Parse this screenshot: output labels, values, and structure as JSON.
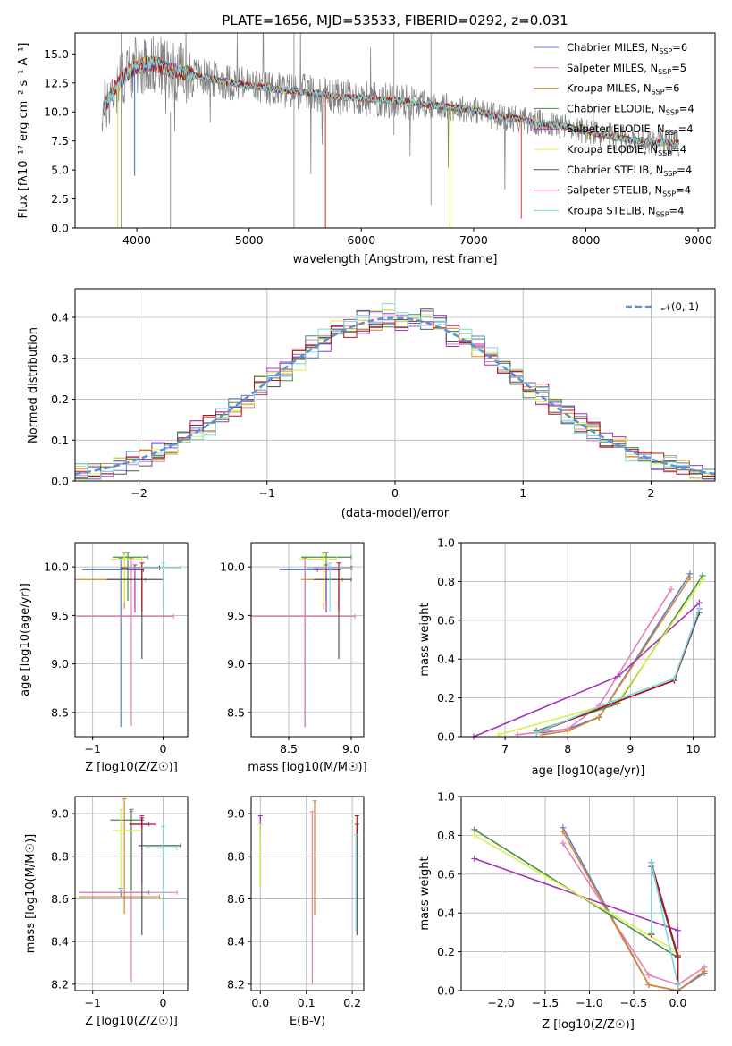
{
  "colors": {
    "Chabrier MILES": "#5a7fd6",
    "Salpeter MILES": "#e87fb8",
    "Kroupa MILES": "#d9862a",
    "Chabrier ELODIE": "#4b8c4b",
    "Salpeter ELODIE": "#a235b8",
    "Kroupa ELODIE": "#d8f04a",
    "Chabrier STELIB": "#555555",
    "Salpeter STELIB": "#b01020",
    "Kroupa STELIB": "#7fd8e0"
  },
  "chart_data": [
    {
      "id": "spectrum",
      "type": "line",
      "title": "PLATE=1656, MJD=53533, FIBERID=0292, z=0.031",
      "xlabel": "wavelength [Angstrom, rest frame]",
      "ylabel": "Flux [fλ10⁻¹⁷ erg cm⁻² s⁻¹ A⁻¹]",
      "xlim": [
        3450,
        9150
      ],
      "ylim": [
        0,
        16.8
      ],
      "xticks": [
        4000,
        5000,
        6000,
        7000,
        8000,
        9000
      ],
      "yticks": [
        0.0,
        2.5,
        5.0,
        7.5,
        10.0,
        12.5,
        15.0
      ],
      "legend_position": "top-right",
      "legend": [
        {
          "label": "Chabrier MILES, NSSP=6",
          "model": "Chabrier MILES"
        },
        {
          "label": "Salpeter MILES, NSSP=5",
          "model": "Salpeter MILES"
        },
        {
          "label": "Kroupa MILES, NSSP=6",
          "model": "Kroupa MILES"
        },
        {
          "label": "Chabrier ELODIE, NSSP=4",
          "model": "Chabrier ELODIE"
        },
        {
          "label": "Salpeter ELODIE, NSSP=4",
          "model": "Salpeter ELODIE"
        },
        {
          "label": "Kroupa ELODIE, NSSP=4",
          "model": "Kroupa ELODIE"
        },
        {
          "label": "Chabrier STELIB, NSSP=4",
          "model": "Chabrier STELIB"
        },
        {
          "label": "Salpeter STELIB, NSSP=4",
          "model": "Salpeter STELIB"
        },
        {
          "label": "Kroupa STELIB, NSSP=4",
          "model": "Kroupa STELIB"
        }
      ],
      "continuum": {
        "x": [
          3700,
          3800,
          3900,
          4000,
          4100,
          4200,
          4300,
          4400,
          4600,
          4800,
          5000,
          5200,
          5400,
          5600,
          5800,
          6000,
          6200,
          6400,
          6600,
          6800,
          7000,
          7200,
          7400,
          7600,
          7800,
          8000,
          8200,
          8400,
          8600,
          8800
        ],
        "y": [
          10.2,
          12.0,
          13.2,
          14.0,
          14.2,
          14.0,
          13.6,
          13.4,
          13.0,
          12.6,
          12.3,
          12.0,
          11.8,
          11.6,
          11.3,
          11.2,
          11.0,
          10.9,
          10.6,
          10.4,
          10.2,
          9.6,
          9.4,
          9.0,
          8.8,
          8.3,
          7.9,
          7.6,
          7.4,
          7.3
        ]
      }
    },
    {
      "id": "residuals",
      "type": "bar",
      "xlabel": "(data-model)/error",
      "ylabel": "Normed distribution",
      "xlim": [
        -2.5,
        2.5
      ],
      "ylim": [
        0,
        0.47
      ],
      "xticks": [
        -2,
        -1,
        0,
        1,
        2
      ],
      "yticks": [
        0.0,
        0.1,
        0.2,
        0.3,
        0.4
      ],
      "legend_position": "top-right",
      "legend": [
        {
          "label": "𝒩(0, 1)"
        }
      ],
      "bin_width": 0.1
    },
    {
      "id": "age_vs_Z",
      "type": "scatter",
      "xlabel": "Z [log10(Z/Z☉)]",
      "ylabel": "age  [log10(age/yr)]",
      "xlim": [
        -1.25,
        0.35
      ],
      "ylim": [
        8.25,
        10.25
      ],
      "xticks": [
        -1,
        0
      ],
      "xticklabels": [
        "−1",
        "0"
      ],
      "yticks": [
        8.5,
        9.0,
        9.5,
        10.0
      ],
      "points": [
        {
          "model": "Chabrier MILES",
          "x": -0.6,
          "y": 9.97,
          "xerr": [
            0.55,
            0.3
          ],
          "yerr": [
            1.62,
            0.12
          ]
        },
        {
          "model": "Salpeter MILES",
          "x": -0.45,
          "y": 9.49,
          "xerr": [
            0.78,
            0.6
          ],
          "yerr": [
            1.13,
            0.6
          ]
        },
        {
          "model": "Kroupa MILES",
          "x": -0.55,
          "y": 9.87,
          "xerr": [
            0.7,
            0.3
          ],
          "yerr": [
            0.3,
            0.28
          ]
        },
        {
          "model": "Chabrier ELODIE",
          "x": -0.5,
          "y": 10.1,
          "xerr": [
            0.22,
            0.28
          ],
          "yerr": [
            0.45,
            0.05
          ]
        },
        {
          "model": "Salpeter ELODIE",
          "x": -0.4,
          "y": 9.97,
          "xerr": [
            0.1,
            0.12
          ],
          "yerr": [
            0.44,
            0.05
          ]
        },
        {
          "model": "Kroupa ELODIE",
          "x": -0.55,
          "y": 10.08,
          "xerr": [
            0.2,
            0.25
          ],
          "yerr": [
            0.45,
            0.05
          ]
        },
        {
          "model": "Chabrier STELIB",
          "x": -0.3,
          "y": 9.87,
          "xerr": [
            0.5,
            0.3
          ],
          "yerr": [
            0.82,
            0.1
          ]
        },
        {
          "model": "Salpeter STELIB",
          "x": -0.3,
          "y": 9.99,
          "xerr": [
            0.3,
            0.25
          ],
          "yerr": [
            0.45,
            0.05
          ]
        },
        {
          "model": "Kroupa STELIB",
          "x": 0.0,
          "y": 9.99,
          "xerr": [
            0.5,
            0.25
          ],
          "yerr": [
            0.45,
            0.05
          ]
        }
      ]
    },
    {
      "id": "age_vs_mass",
      "type": "scatter",
      "xlabel": "mass [log10(M/M☉)]",
      "xlim": [
        8.2,
        9.1
      ],
      "ylim": [
        8.25,
        10.25
      ],
      "xticks": [
        8.5,
        9.0
      ],
      "yticks": [
        8.5,
        9.0,
        9.5,
        10.0
      ],
      "points": [
        {
          "model": "Chabrier MILES",
          "x": 8.63,
          "y": 9.97,
          "xerr": [
            0.2,
            0.1
          ],
          "yerr": [
            1.62,
            0.12
          ]
        },
        {
          "model": "Salpeter MILES",
          "x": 8.63,
          "y": 9.49,
          "xerr": [
            0.43,
            0.4
          ],
          "yerr": [
            1.13,
            0.6
          ]
        },
        {
          "model": "Kroupa MILES",
          "x": 8.78,
          "y": 9.87,
          "xerr": [
            0.18,
            0.15
          ],
          "yerr": [
            0.3,
            0.28
          ]
        },
        {
          "model": "Chabrier ELODIE",
          "x": 8.8,
          "y": 10.1,
          "xerr": [
            0.2,
            0.2
          ],
          "yerr": [
            0.45,
            0.05
          ]
        },
        {
          "model": "Salpeter ELODIE",
          "x": 8.8,
          "y": 9.97,
          "xerr": [
            0.1,
            0.1
          ],
          "yerr": [
            0.44,
            0.05
          ]
        },
        {
          "model": "Kroupa ELODIE",
          "x": 8.78,
          "y": 10.08,
          "xerr": [
            0.2,
            0.1
          ],
          "yerr": [
            0.45,
            0.05
          ]
        },
        {
          "model": "Chabrier STELIB",
          "x": 8.9,
          "y": 9.87,
          "xerr": [
            0.2,
            0.1
          ],
          "yerr": [
            0.82,
            0.1
          ]
        },
        {
          "model": "Salpeter STELIB",
          "x": 8.9,
          "y": 9.99,
          "xerr": [
            0.2,
            0.1
          ],
          "yerr": [
            0.45,
            0.05
          ]
        },
        {
          "model": "Kroupa STELIB",
          "x": 8.83,
          "y": 9.99,
          "xerr": [
            0.18,
            0.18
          ],
          "yerr": [
            0.45,
            0.05
          ]
        }
      ]
    },
    {
      "id": "massweight_vs_age",
      "type": "line",
      "xlabel": "age  [log10(age/yr)]",
      "ylabel": "mass weight",
      "xlim": [
        6.3,
        10.35
      ],
      "ylim": [
        0,
        1.0
      ],
      "xticks": [
        7,
        8,
        9,
        10
      ],
      "yticks": [
        0.0,
        0.2,
        0.4,
        0.6,
        0.8,
        1.0
      ],
      "series": [
        {
          "model": "Chabrier MILES",
          "x": [
            7.6,
            8.0,
            8.5,
            9.95
          ],
          "y": [
            0.02,
            0.04,
            0.1,
            0.84
          ]
        },
        {
          "model": "Salpeter MILES",
          "x": [
            7.2,
            8.0,
            8.5,
            9.65
          ],
          "y": [
            0.01,
            0.04,
            0.16,
            0.76
          ]
        },
        {
          "model": "Kroupa MILES",
          "x": [
            7.6,
            8.0,
            8.5,
            9.95
          ],
          "y": [
            0.01,
            0.03,
            0.1,
            0.82
          ]
        },
        {
          "model": "Chabrier ELODIE",
          "x": [
            7.5,
            8.8,
            10.15
          ],
          "y": [
            0.03,
            0.17,
            0.83
          ]
        },
        {
          "model": "Salpeter ELODIE",
          "x": [
            6.5,
            8.8,
            10.1
          ],
          "y": [
            0.0,
            0.31,
            0.69
          ]
        },
        {
          "model": "Kroupa ELODIE",
          "x": [
            6.9,
            8.8,
            10.15
          ],
          "y": [
            0.01,
            0.18,
            0.81
          ]
        },
        {
          "model": "Chabrier STELIB",
          "x": [
            7.5,
            8.7,
            9.7,
            10.1
          ],
          "y": [
            0.02,
            0.17,
            0.29,
            0.64
          ]
        },
        {
          "model": "Salpeter STELIB",
          "x": [
            7.5,
            8.7,
            9.7,
            10.1
          ],
          "y": [
            0.02,
            0.17,
            0.29,
            0.66
          ]
        },
        {
          "model": "Kroupa STELIB",
          "x": [
            7.5,
            8.7,
            9.7,
            10.1
          ],
          "y": [
            0.02,
            0.18,
            0.3,
            0.66
          ]
        }
      ]
    },
    {
      "id": "mass_vs_Z",
      "type": "scatter",
      "xlabel": "Z [log10(Z/Z☉)]",
      "ylabel": "mass [log10(M/M☉)]",
      "xlim": [
        -1.25,
        0.35
      ],
      "ylim": [
        8.17,
        9.08
      ],
      "xticks": [
        -1,
        0
      ],
      "xticklabels": [
        "−1",
        "0"
      ],
      "yticks": [
        8.2,
        8.4,
        8.6,
        8.8,
        9.0
      ],
      "points": [
        {
          "model": "Chabrier MILES",
          "x": -0.6,
          "y": 8.63,
          "xerr": [
            0.6,
            0.4
          ],
          "yerr": [
            0.02,
            0.02
          ]
        },
        {
          "model": "Salpeter MILES",
          "x": -0.45,
          "y": 8.63,
          "xerr": [
            0.75,
            0.65
          ],
          "yerr": [
            0.42,
            0.38
          ]
        },
        {
          "model": "Kroupa MILES",
          "x": -0.55,
          "y": 8.61,
          "xerr": [
            0.65,
            0.5
          ],
          "yerr": [
            0.08,
            0.46
          ]
        },
        {
          "model": "Chabrier ELODIE",
          "x": -0.45,
          "y": 8.97,
          "xerr": [
            0.3,
            0.15
          ],
          "yerr": [
            0.33,
            0.05
          ]
        },
        {
          "model": "Salpeter ELODIE",
          "x": -0.3,
          "y": 8.95,
          "xerr": [
            0.15,
            0.1
          ],
          "yerr": [
            0.28,
            0.04
          ]
        },
        {
          "model": "Kroupa ELODIE",
          "x": -0.6,
          "y": 8.92,
          "xerr": [
            0.12,
            0.3
          ],
          "yerr": [
            0.28,
            0.1
          ]
        },
        {
          "model": "Chabrier STELIB",
          "x": -0.3,
          "y": 8.85,
          "xerr": [
            0.05,
            0.55
          ],
          "yerr": [
            0.42,
            0.12
          ]
        },
        {
          "model": "Salpeter STELIB",
          "x": -0.3,
          "y": 8.95,
          "xerr": [
            0.18,
            0.2
          ],
          "yerr": [
            0.02,
            0.03
          ]
        },
        {
          "model": "Kroupa STELIB",
          "x": 0.0,
          "y": 8.84,
          "xerr": [
            0.25,
            0.2
          ],
          "yerr": [
            0.4,
            0.1
          ]
        }
      ]
    },
    {
      "id": "mass_vs_EBV",
      "type": "scatter",
      "xlabel": "E(B-V)",
      "xlim": [
        -0.02,
        0.225
      ],
      "ylim": [
        8.17,
        9.08
      ],
      "xticks": [
        0.0,
        0.1,
        0.2
      ],
      "yticks": [
        8.2,
        8.4,
        8.6,
        8.8,
        9.0
      ],
      "points": [
        {
          "model": "Chabrier MILES",
          "x": 0.0,
          "y": 8.97,
          "yerr": [
            0.1,
            0.02
          ]
        },
        {
          "model": "Salpeter MILES",
          "x": 0.113,
          "y": 8.63,
          "yerr": [
            0.43,
            0.38
          ]
        },
        {
          "model": "Kroupa MILES",
          "x": 0.118,
          "y": 8.82,
          "yerr": [
            0.3,
            0.24
          ]
        },
        {
          "model": "Chabrier ELODIE",
          "x": 0.0,
          "y": 8.85,
          "yerr": [
            0.2,
            0.1
          ]
        },
        {
          "model": "Salpeter ELODIE",
          "x": 0.0,
          "y": 8.95,
          "yerr": [
            0.05,
            0.04
          ]
        },
        {
          "model": "Kroupa ELODIE",
          "x": 0.0,
          "y": 8.8,
          "yerr": [
            0.15,
            0.15
          ]
        },
        {
          "model": "Chabrier STELIB",
          "x": 0.21,
          "y": 8.7,
          "yerr": [
            0.27,
            0.25
          ]
        },
        {
          "model": "Salpeter STELIB",
          "x": 0.21,
          "y": 8.95,
          "yerr": [
            0.05,
            0.04
          ]
        },
        {
          "model": "Kroupa STELIB",
          "x": 0.208,
          "y": 8.7,
          "yerr": [
            0.25,
            0.2
          ]
        }
      ]
    },
    {
      "id": "massweight_vs_Z",
      "type": "line",
      "xlabel": "Z [log10(Z/Z☉)]",
      "ylabel": "mass weight",
      "xlim": [
        -2.45,
        0.42
      ],
      "ylim": [
        0,
        1.0
      ],
      "xticks": [
        -2.0,
        -1.5,
        -1.0,
        -0.5,
        0.0
      ],
      "xticklabels": [
        "−2.0",
        "−1.5",
        "−1.0",
        "−0.5",
        "0.0"
      ],
      "yticks": [
        0.0,
        0.2,
        0.4,
        0.6,
        0.8,
        1.0
      ],
      "series": [
        {
          "model": "Chabrier MILES",
          "x": [
            -1.3,
            -0.33,
            0.0,
            0.3
          ],
          "y": [
            0.84,
            0.03,
            0.0,
            0.09
          ]
        },
        {
          "model": "Salpeter MILES",
          "x": [
            -1.3,
            -0.33,
            0.0,
            0.3
          ],
          "y": [
            0.76,
            0.08,
            0.03,
            0.12
          ]
        },
        {
          "model": "Kroupa MILES",
          "x": [
            -1.3,
            -0.33,
            0.0,
            0.3
          ],
          "y": [
            0.82,
            0.03,
            0.0,
            0.1
          ]
        },
        {
          "model": "Chabrier ELODIE",
          "x": [
            -2.3,
            0.0,
            0.0
          ],
          "y": [
            0.83,
            0.17,
            0.0
          ]
        },
        {
          "model": "Salpeter ELODIE",
          "x": [
            -2.3,
            0.0,
            0.0
          ],
          "y": [
            0.68,
            0.31,
            0.0
          ]
        },
        {
          "model": "Kroupa ELODIE",
          "x": [
            -2.3,
            0.0,
            0.0
          ],
          "y": [
            0.8,
            0.2,
            0.0
          ]
        },
        {
          "model": "Chabrier STELIB",
          "x": [
            -0.3,
            -0.3,
            0.0,
            0.0
          ],
          "y": [
            0.29,
            0.64,
            0.17,
            0.0
          ]
        },
        {
          "model": "Salpeter STELIB",
          "x": [
            -0.3,
            -0.3,
            0.0,
            0.0
          ],
          "y": [
            0.29,
            0.66,
            0.18,
            0.0
          ]
        },
        {
          "model": "Kroupa STELIB",
          "x": [
            -0.3,
            -0.3,
            0.0,
            0.0
          ],
          "y": [
            0.3,
            0.66,
            0.03,
            0.0
          ]
        }
      ]
    }
  ]
}
